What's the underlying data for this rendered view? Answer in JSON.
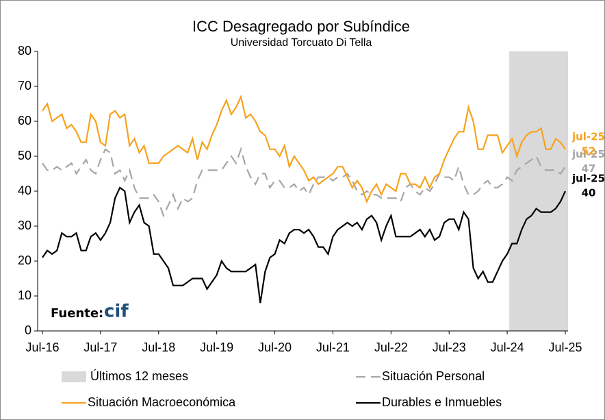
{
  "chart_data": {
    "type": "line",
    "title": "ICC Desagregado por Subíndice",
    "subtitle": "Universidad Torcuato Di Tella",
    "source": "Fuente:",
    "source_logo": "cif",
    "ylim": [
      0,
      80
    ],
    "yticks": [
      0,
      10,
      20,
      30,
      40,
      50,
      60,
      70,
      80
    ],
    "shade": {
      "name": "Últimos 12 meses",
      "color": "#d9d9d9",
      "from": "Jul-24",
      "to": "Jul-25"
    },
    "categories": [
      "Jul-16",
      null,
      null,
      null,
      null,
      null,
      null,
      null,
      null,
      null,
      null,
      null,
      "Jul-17",
      null,
      null,
      null,
      null,
      null,
      null,
      null,
      null,
      null,
      null,
      null,
      "Jul-18",
      null,
      null,
      null,
      null,
      null,
      null,
      null,
      null,
      null,
      null,
      null,
      "Jul-19",
      null,
      null,
      null,
      null,
      null,
      null,
      null,
      null,
      null,
      null,
      null,
      "Jul-20",
      null,
      null,
      null,
      null,
      null,
      null,
      null,
      null,
      null,
      null,
      null,
      "Jul-21",
      null,
      null,
      null,
      null,
      null,
      null,
      null,
      null,
      null,
      null,
      null,
      "Jul-22",
      null,
      null,
      null,
      null,
      null,
      null,
      null,
      null,
      null,
      null,
      null,
      "Jul-23",
      null,
      null,
      null,
      null,
      null,
      null,
      null,
      null,
      null,
      null,
      null,
      "Jul-24",
      null,
      null,
      null,
      null,
      null,
      null,
      null,
      null,
      null,
      null,
      null,
      "Jul-25"
    ],
    "series": [
      {
        "name": "Situación Personal",
        "color": "#a6a6a6",
        "dash": true,
        "end_label": {
          "label": "jul-25",
          "value": 47
        },
        "values": [
          48,
          46,
          46,
          47,
          46,
          47,
          48,
          45,
          47,
          49,
          46,
          45,
          49,
          52,
          51,
          45,
          46,
          43,
          46,
          41,
          38,
          38,
          38,
          39,
          37,
          33,
          36,
          39,
          35,
          38,
          37,
          38,
          43,
          46,
          46,
          46,
          46,
          46,
          48,
          50,
          48,
          52,
          47,
          44,
          42,
          45,
          45,
          41,
          43,
          43,
          41,
          41,
          42,
          40,
          41,
          39,
          42,
          44,
          44,
          44,
          43,
          44,
          44,
          45,
          43,
          40,
          39,
          40,
          39,
          39,
          38,
          38,
          38,
          38,
          37,
          41,
          42,
          40,
          39,
          41,
          40,
          42,
          45,
          44,
          44,
          43,
          47,
          42,
          39,
          39,
          40,
          42,
          43,
          41,
          41,
          42,
          44,
          43,
          46,
          47,
          48,
          49,
          50,
          47,
          46,
          46,
          46,
          45,
          47
        ]
      },
      {
        "name": "Situación Macroeconómica",
        "color": "#f7a21b",
        "dash": false,
        "end_label": {
          "label": "jul-25",
          "value": 52
        },
        "values": [
          63,
          65,
          60,
          61,
          62,
          58,
          59,
          57,
          54,
          54,
          62,
          60,
          54,
          53,
          62,
          63,
          61,
          62,
          53,
          55,
          51,
          53,
          48,
          48,
          48,
          50,
          51,
          52,
          53,
          52,
          51,
          55,
          49,
          54,
          52,
          56,
          59,
          63,
          66,
          62,
          64,
          67,
          61,
          62,
          60,
          57,
          56,
          52,
          52,
          50,
          53,
          47,
          50,
          48,
          46,
          43,
          44,
          42,
          43,
          44,
          45,
          47,
          47,
          44,
          41,
          43,
          41,
          37,
          40,
          42,
          39,
          42,
          41,
          40,
          45,
          45,
          42,
          42,
          41,
          44,
          41,
          44,
          45,
          49,
          52,
          55,
          57,
          57,
          64,
          60,
          52,
          52,
          56,
          56,
          56,
          51,
          53,
          55,
          50,
          54,
          56,
          57,
          57,
          58,
          52,
          52,
          55,
          54,
          52
        ]
      },
      {
        "name": "Durables e Inmuebles",
        "color": "#000000",
        "dash": false,
        "end_label": {
          "label": "jul-25",
          "value": 40
        },
        "values": [
          21,
          23,
          22,
          23,
          28,
          27,
          27,
          28,
          23,
          23,
          27,
          28,
          26,
          28,
          31,
          38,
          41,
          40,
          31,
          34,
          36,
          31,
          30,
          22,
          22,
          20,
          18,
          13,
          13,
          13,
          14,
          15,
          15,
          15,
          12,
          14,
          16,
          20,
          18,
          17,
          17,
          17,
          17,
          18,
          19,
          8,
          17,
          21,
          22,
          26,
          25,
          28,
          29,
          29,
          28,
          29,
          27,
          24,
          24,
          22,
          27,
          29,
          30,
          31,
          30,
          31,
          29,
          32,
          33,
          31,
          26,
          30,
          33,
          27,
          27,
          27,
          27,
          28,
          29,
          27,
          29,
          26,
          27,
          31,
          32,
          32,
          29,
          34,
          32,
          18,
          15,
          17,
          14,
          14,
          17,
          20,
          22,
          25,
          25,
          29,
          32,
          33,
          35,
          34,
          34,
          34,
          35,
          37,
          40
        ]
      }
    ]
  }
}
